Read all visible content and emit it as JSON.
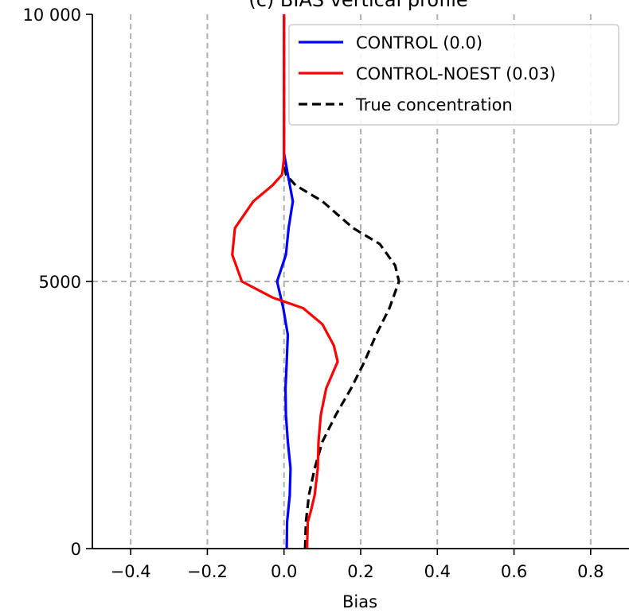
{
  "chart_data": {
    "type": "line",
    "title": "(c) BIAS vertical profile",
    "xlabel": "Bias",
    "ylabel": "",
    "xlim": [
      -0.5,
      0.9
    ],
    "ylim": [
      0,
      10000
    ],
    "xticks": [
      -0.4,
      -0.2,
      0.0,
      0.2,
      0.4,
      0.6,
      0.8
    ],
    "xtick_labels": [
      "−0.4",
      "−0.2",
      "0.0",
      "0.2",
      "0.4",
      "0.6",
      "0.8"
    ],
    "yticks": [
      0,
      5000,
      10000
    ],
    "ytick_labels": [
      "0",
      "5000",
      "10 000"
    ],
    "grid": true,
    "legend_position": "top-right",
    "series": [
      {
        "name": "CONTROL (0.0)",
        "color": "#0000ff",
        "style": "solid",
        "points": [
          [
            0.007,
            0
          ],
          [
            0.008,
            500
          ],
          [
            0.015,
            1000
          ],
          [
            0.017,
            1500
          ],
          [
            0.01,
            2000
          ],
          [
            0.005,
            2500
          ],
          [
            0.004,
            3000
          ],
          [
            0.007,
            3500
          ],
          [
            0.01,
            4000
          ],
          [
            -0.002,
            4500
          ],
          [
            -0.018,
            5000
          ],
          [
            0.005,
            5500
          ],
          [
            0.012,
            6000
          ],
          [
            0.023,
            6500
          ],
          [
            0.01,
            7000
          ],
          [
            0.0,
            7400
          ],
          [
            0.0,
            8000
          ],
          [
            0.0,
            9000
          ],
          [
            0.0,
            10000
          ]
        ]
      },
      {
        "name": "CONTROL-NOEST (0.03)",
        "color": "#ff0000",
        "style": "solid",
        "points": [
          [
            0.06,
            0
          ],
          [
            0.062,
            500
          ],
          [
            0.07,
            700
          ],
          [
            0.08,
            1000
          ],
          [
            0.088,
            1500
          ],
          [
            0.09,
            2000
          ],
          [
            0.096,
            2500
          ],
          [
            0.11,
            3000
          ],
          [
            0.14,
            3500
          ],
          [
            0.13,
            3800
          ],
          [
            0.1,
            4200
          ],
          [
            0.05,
            4500
          ],
          [
            -0.03,
            4700
          ],
          [
            -0.11,
            5000
          ],
          [
            -0.135,
            5500
          ],
          [
            -0.128,
            6000
          ],
          [
            -0.08,
            6500
          ],
          [
            -0.03,
            6800
          ],
          [
            -0.005,
            7000
          ],
          [
            0.0,
            7300
          ],
          [
            0.0,
            8000
          ],
          [
            0.0,
            9000
          ],
          [
            0.0,
            10000
          ]
        ]
      },
      {
        "name": "True concentration",
        "color": "#000000",
        "style": "dashed",
        "points": [
          [
            0.055,
            0
          ],
          [
            0.057,
            500
          ],
          [
            0.065,
            1000
          ],
          [
            0.08,
            1500
          ],
          [
            0.1,
            2000
          ],
          [
            0.135,
            2500
          ],
          [
            0.175,
            3000
          ],
          [
            0.21,
            3500
          ],
          [
            0.24,
            4000
          ],
          [
            0.275,
            4500
          ],
          [
            0.3,
            5000
          ],
          [
            0.29,
            5300
          ],
          [
            0.25,
            5700
          ],
          [
            0.18,
            6000
          ],
          [
            0.1,
            6500
          ],
          [
            0.03,
            6800
          ],
          [
            0.005,
            7000
          ],
          [
            0.0,
            7300
          ],
          [
            0.0,
            8000
          ],
          [
            0.0,
            9000
          ],
          [
            0.0,
            10000
          ]
        ]
      }
    ]
  }
}
